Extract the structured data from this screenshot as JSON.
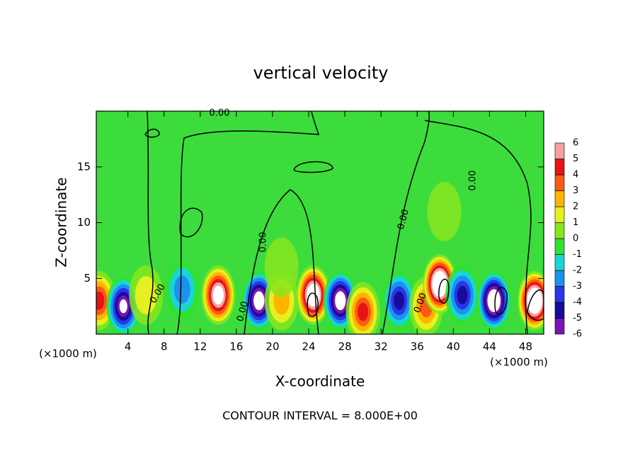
{
  "chart_data": {
    "type": "contour",
    "title": "vertical velocity",
    "x_label": "X-coordinate",
    "y_label": "Z-coordinate",
    "x_unit": "(×1000 m)",
    "footer": "CONTOUR INTERVAL = 8.000E+00",
    "contour_label": "0.00",
    "xlim": [
      0.5,
      50
    ],
    "ylim": [
      0,
      20
    ],
    "xticks": [
      4,
      8,
      12,
      16,
      20,
      24,
      28,
      32,
      36,
      40,
      44,
      48
    ],
    "yticks": [
      5,
      10,
      15
    ],
    "colorbar": {
      "levels": [
        -6,
        -5,
        -4,
        -3,
        -2,
        -1,
        0,
        1,
        2,
        3,
        4,
        5,
        6
      ],
      "colors": [
        "#7a14b4",
        "#1a0a9c",
        "#2638e8",
        "#1e90f0",
        "#18d6d6",
        "#2ee22e",
        "#86e61e",
        "#e6f01e",
        "#ffb400",
        "#ff5a14",
        "#e61414",
        "#f5a0a0"
      ]
    },
    "cells": [
      {
        "x": 0.8,
        "z": 3,
        "value": 5
      },
      {
        "x": 3.5,
        "z": 2.5,
        "value": -7
      },
      {
        "x": 6,
        "z": 3.5,
        "value": 2
      },
      {
        "x": 10,
        "z": 4,
        "value": -3
      },
      {
        "x": 14,
        "z": 3.5,
        "value": 8
      },
      {
        "x": 18.5,
        "z": 3,
        "value": -8
      },
      {
        "x": 21,
        "z": 3,
        "value": 3
      },
      {
        "x": 24.5,
        "z": 3.5,
        "value": 9
      },
      {
        "x": 27.5,
        "z": 3,
        "value": -8
      },
      {
        "x": 30,
        "z": 2,
        "value": 5
      },
      {
        "x": 34,
        "z": 3,
        "value": -5
      },
      {
        "x": 37,
        "z": 2.5,
        "value": 4
      },
      {
        "x": 38.5,
        "z": 4.5,
        "value": 10
      },
      {
        "x": 41,
        "z": 3.5,
        "value": -5
      },
      {
        "x": 44.5,
        "z": 3,
        "value": -9
      },
      {
        "x": 49,
        "z": 3,
        "value": 10
      },
      {
        "x": 39,
        "z": 11,
        "value": 1
      },
      {
        "x": 21,
        "z": 6,
        "value": 1
      }
    ]
  }
}
